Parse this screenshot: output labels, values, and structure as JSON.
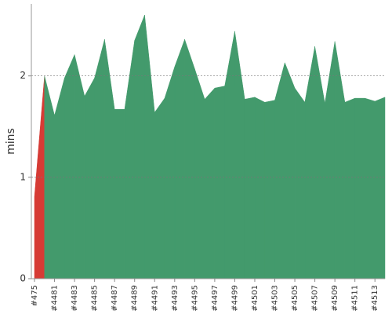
{
  "chart_data": {
    "type": "area",
    "ylabel": "mins",
    "categories": [
      "#475",
      null,
      "#4481",
      null,
      "#4483",
      null,
      "#4485",
      null,
      "#4487",
      null,
      "#4489",
      null,
      "#4491",
      null,
      "#4493",
      null,
      "#4495",
      null,
      "#4497",
      null,
      "#4499",
      null,
      "#4501",
      null,
      "#4503",
      null,
      "#4505",
      null,
      "#4507",
      null,
      "#4509",
      null,
      "#4511",
      null,
      "#4513",
      null
    ],
    "values": [
      0.81,
      2.0,
      1.61,
      1.98,
      2.21,
      1.8,
      1.98,
      2.36,
      1.67,
      1.67,
      2.35,
      2.6,
      1.64,
      1.78,
      2.09,
      2.36,
      2.07,
      1.77,
      1.88,
      1.9,
      2.44,
      1.77,
      1.79,
      1.74,
      1.76,
      2.13,
      1.88,
      1.74,
      2.29,
      1.73,
      2.34,
      1.74,
      1.78,
      1.78,
      1.75,
      1.79
    ],
    "colors": [
      "#d63b35",
      "#439a6c",
      "#439a6c",
      "#439a6c",
      "#439a6c",
      "#439a6c",
      "#439a6c",
      "#439a6c",
      "#439a6c",
      "#439a6c",
      "#439a6c",
      "#439a6c",
      "#439a6c",
      "#439a6c",
      "#439a6c",
      "#439a6c",
      "#439a6c",
      "#439a6c",
      "#439a6c",
      "#439a6c",
      "#439a6c",
      "#439a6c",
      "#439a6c",
      "#439a6c",
      "#439a6c",
      "#439a6c",
      "#439a6c",
      "#439a6c",
      "#439a6c",
      "#439a6c",
      "#439a6c",
      "#439a6c",
      "#439a6c",
      "#439a6c",
      "#439a6c",
      "#439a6c"
    ],
    "ylim": [
      0,
      2.71
    ],
    "yticks": [
      0,
      1,
      2
    ],
    "grid": true
  }
}
